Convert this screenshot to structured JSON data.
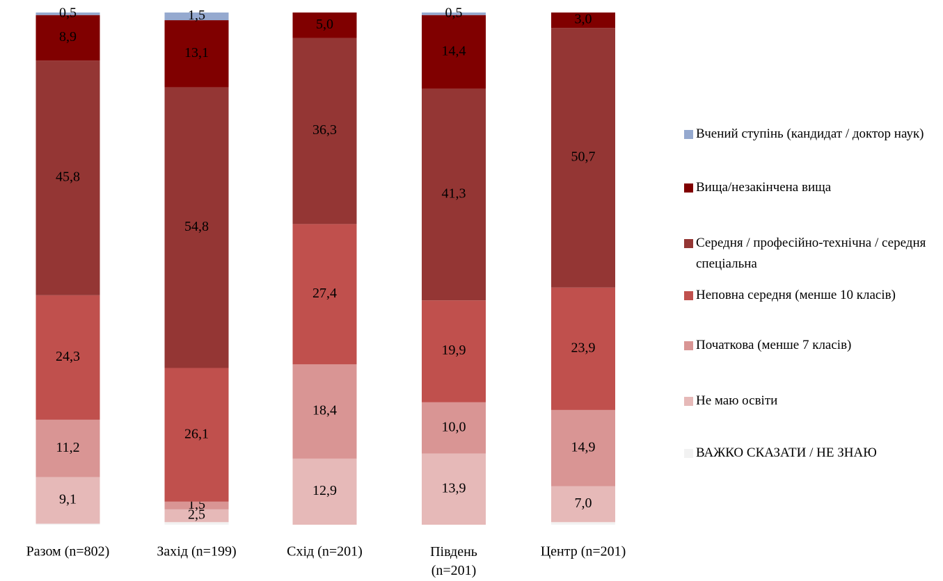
{
  "chart_data": {
    "type": "stacked_bar",
    "categories": [
      "Разом (n=802)",
      "Захід (n=199)",
      "Схід (n=201)",
      "Південь (n=201)",
      "Центр (n=201)"
    ],
    "ylim": [
      0,
      100
    ],
    "series": [
      {
        "name": "ВАЖКО СКАЗАТИ / НЕ ЗНАЮ",
        "color": "#f2f2f2",
        "values": [
          0.2,
          0.5,
          0,
          0,
          0.5
        ],
        "value_labels": [
          null,
          null,
          null,
          null,
          null
        ]
      },
      {
        "name": "Не маю освіти",
        "color": "#e6b9b8",
        "values": [
          9.1,
          2.5,
          12.9,
          13.9,
          7.0
        ],
        "value_labels": [
          "9,1",
          "2,5",
          "12,9",
          "13,9",
          "7,0"
        ]
      },
      {
        "name": "Початкова (менше 7 класів)",
        "color": "#d99594",
        "values": [
          11.2,
          1.5,
          18.4,
          10.0,
          14.9
        ],
        "value_labels": [
          "11,2",
          "1,5",
          "18,4",
          "10,0",
          "14,9"
        ]
      },
      {
        "name": "Неповна середня (менше 10 класів)",
        "color": "#c0504d",
        "values": [
          24.3,
          26.1,
          27.4,
          19.9,
          23.9
        ],
        "value_labels": [
          "24,3",
          "26,1",
          "27,4",
          "19,9",
          "23,9"
        ]
      },
      {
        "name": "Середня / професійно-технічна / середня спеціальна",
        "color": "#943634",
        "values": [
          45.8,
          54.8,
          36.3,
          41.3,
          50.7
        ],
        "value_labels": [
          "45,8",
          "54,8",
          "36,3",
          "41,3",
          "50,7"
        ]
      },
      {
        "name": "Вища/незакінчена вища",
        "color": "#800000",
        "values": [
          8.9,
          13.1,
          5.0,
          14.4,
          3.0
        ],
        "value_labels": [
          "8,9",
          "13,1",
          "5,0",
          "14,4",
          "3,0"
        ]
      },
      {
        "name": "Вчений ступінь (кандидат / доктор наук)",
        "color": "#95a9cf",
        "values": [
          0.5,
          1.5,
          0,
          0.5,
          0
        ],
        "value_labels": [
          "0,5",
          "1,5",
          null,
          "0,5",
          null
        ]
      }
    ]
  }
}
